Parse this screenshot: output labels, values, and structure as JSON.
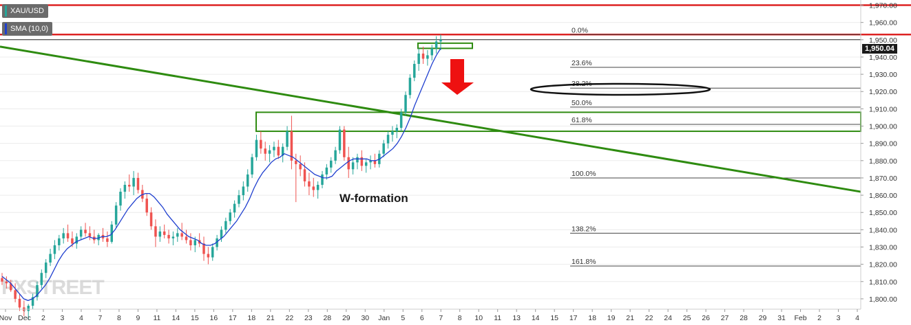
{
  "legend": {
    "symbol": "XAU/USD",
    "indicator": "SMA (10,0)",
    "symbol_color": "#26a69a",
    "indicator_color": "#1f3fcf"
  },
  "last_price_label": "1,950.04",
  "chart_data": {
    "type": "candlestick",
    "title": "",
    "xlabel": "",
    "ylabel": "",
    "ylim": [
      1794,
      1973
    ],
    "y_ticks": [
      "1,970.00",
      "1,960.00",
      "1,950.00",
      "1,940.00",
      "1,930.00",
      "1,920.00",
      "1,910.00",
      "1,900.00",
      "1,890.00",
      "1,880.00",
      "1,870.00",
      "1,860.00",
      "1,850.00",
      "1,840.00",
      "1,830.00",
      "1,820.00",
      "1,810.00",
      "1,800.00"
    ],
    "x_ticks": [
      "Nov",
      "Dec",
      "2",
      "3",
      "4",
      "7",
      "8",
      "9",
      "11",
      "14",
      "15",
      "16",
      "17",
      "18",
      "21",
      "22",
      "23",
      "28",
      "29",
      "30",
      "Jan",
      "5",
      "6",
      "7",
      "8",
      "10",
      "11",
      "13",
      "14",
      "15",
      "17",
      "18",
      "19",
      "21",
      "22",
      "24",
      "25",
      "26",
      "27",
      "28",
      "29",
      "31",
      "Feb",
      "2",
      "3",
      "4"
    ],
    "bullish_color": "#26a69a",
    "bearish_color": "#ef5350",
    "sma_color": "#1f3fcf",
    "candles_ohlc": [
      [
        1812,
        1815,
        1808,
        1810
      ],
      [
        1810,
        1813,
        1806,
        1809
      ],
      [
        1809,
        1811,
        1804,
        1805
      ],
      [
        1805,
        1809,
        1798,
        1800
      ],
      [
        1800,
        1803,
        1793,
        1795
      ],
      [
        1795,
        1799,
        1790,
        1793
      ],
      [
        1793,
        1797,
        1788,
        1796
      ],
      [
        1796,
        1803,
        1794,
        1801
      ],
      [
        1801,
        1810,
        1799,
        1808
      ],
      [
        1808,
        1817,
        1806,
        1815
      ],
      [
        1815,
        1823,
        1812,
        1821
      ],
      [
        1821,
        1829,
        1819,
        1826
      ],
      [
        1826,
        1834,
        1823,
        1831
      ],
      [
        1831,
        1837,
        1828,
        1835
      ],
      [
        1835,
        1841,
        1832,
        1838
      ],
      [
        1838,
        1843,
        1833,
        1835
      ],
      [
        1835,
        1839,
        1830,
        1832
      ],
      [
        1832,
        1838,
        1829,
        1836
      ],
      [
        1836,
        1842,
        1834,
        1840
      ],
      [
        1840,
        1844,
        1836,
        1838
      ],
      [
        1838,
        1842,
        1834,
        1836
      ],
      [
        1836,
        1840,
        1832,
        1834
      ],
      [
        1834,
        1838,
        1831,
        1837
      ],
      [
        1837,
        1841,
        1833,
        1835
      ],
      [
        1835,
        1839,
        1830,
        1833
      ],
      [
        1833,
        1845,
        1832,
        1843
      ],
      [
        1843,
        1856,
        1841,
        1854
      ],
      [
        1854,
        1864,
        1851,
        1862
      ],
      [
        1862,
        1868,
        1858,
        1866
      ],
      [
        1866,
        1872,
        1862,
        1865
      ],
      [
        1865,
        1874,
        1860,
        1870
      ],
      [
        1870,
        1873,
        1861,
        1863
      ],
      [
        1863,
        1866,
        1856,
        1858
      ],
      [
        1858,
        1861,
        1848,
        1850
      ],
      [
        1850,
        1853,
        1840,
        1842
      ],
      [
        1842,
        1846,
        1830,
        1836
      ],
      [
        1836,
        1842,
        1833,
        1839
      ],
      [
        1839,
        1843,
        1835,
        1837
      ],
      [
        1837,
        1840,
        1832,
        1835
      ],
      [
        1835,
        1839,
        1831,
        1836
      ],
      [
        1836,
        1841,
        1833,
        1838
      ],
      [
        1838,
        1844,
        1834,
        1836
      ],
      [
        1836,
        1840,
        1832,
        1834
      ],
      [
        1834,
        1838,
        1828,
        1831
      ],
      [
        1831,
        1836,
        1827,
        1834
      ],
      [
        1834,
        1838,
        1830,
        1832
      ],
      [
        1832,
        1836,
        1822,
        1826
      ],
      [
        1826,
        1830,
        1820,
        1824
      ],
      [
        1824,
        1832,
        1822,
        1830
      ],
      [
        1830,
        1837,
        1828,
        1835
      ],
      [
        1835,
        1842,
        1833,
        1840
      ],
      [
        1840,
        1847,
        1838,
        1845
      ],
      [
        1845,
        1852,
        1843,
        1850
      ],
      [
        1850,
        1857,
        1847,
        1855
      ],
      [
        1855,
        1863,
        1853,
        1860
      ],
      [
        1860,
        1868,
        1857,
        1865
      ],
      [
        1865,
        1875,
        1862,
        1872
      ],
      [
        1872,
        1884,
        1870,
        1882
      ],
      [
        1882,
        1895,
        1880,
        1892
      ],
      [
        1892,
        1897,
        1884,
        1887
      ],
      [
        1887,
        1891,
        1880,
        1884
      ],
      [
        1884,
        1889,
        1879,
        1886
      ],
      [
        1886,
        1891,
        1882,
        1888
      ],
      [
        1888,
        1892,
        1881,
        1883
      ],
      [
        1883,
        1890,
        1879,
        1888
      ],
      [
        1888,
        1900,
        1886,
        1897
      ],
      [
        1897,
        1906,
        1875,
        1880
      ],
      [
        1880,
        1884,
        1856,
        1878
      ],
      [
        1878,
        1883,
        1871,
        1875
      ],
      [
        1875,
        1879,
        1865,
        1868
      ],
      [
        1868,
        1873,
        1860,
        1865
      ],
      [
        1865,
        1870,
        1859,
        1863
      ],
      [
        1863,
        1868,
        1858,
        1866
      ],
      [
        1866,
        1874,
        1864,
        1872
      ],
      [
        1872,
        1878,
        1869,
        1876
      ],
      [
        1876,
        1882,
        1873,
        1880
      ],
      [
        1880,
        1888,
        1878,
        1886
      ],
      [
        1886,
        1900,
        1884,
        1898
      ],
      [
        1898,
        1900,
        1880,
        1882
      ],
      [
        1882,
        1888,
        1870,
        1875
      ],
      [
        1875,
        1882,
        1872,
        1879
      ],
      [
        1879,
        1884,
        1875,
        1882
      ],
      [
        1882,
        1886,
        1874,
        1877
      ],
      [
        1877,
        1881,
        1873,
        1879
      ],
      [
        1879,
        1883,
        1875,
        1880
      ],
      [
        1880,
        1884,
        1876,
        1878
      ],
      [
        1878,
        1886,
        1876,
        1884
      ],
      [
        1884,
        1892,
        1882,
        1890
      ],
      [
        1890,
        1897,
        1887,
        1895
      ],
      [
        1895,
        1900,
        1891,
        1897
      ],
      [
        1897,
        1901,
        1893,
        1899
      ],
      [
        1899,
        1910,
        1897,
        1908
      ],
      [
        1908,
        1920,
        1906,
        1918
      ],
      [
        1918,
        1930,
        1916,
        1928
      ],
      [
        1928,
        1938,
        1926,
        1936
      ],
      [
        1936,
        1945,
        1932,
        1942
      ],
      [
        1942,
        1946,
        1936,
        1939
      ],
      [
        1939,
        1944,
        1935,
        1941
      ],
      [
        1941,
        1947,
        1938,
        1945
      ],
      [
        1945,
        1952,
        1942,
        1949
      ],
      [
        1949,
        1953,
        1944,
        1950
      ]
    ],
    "sma_values": [
      1813,
      1811,
      1809,
      1806,
      1803,
      1800,
      1799,
      1800,
      1802,
      1805,
      1808,
      1812,
      1817,
      1822,
      1826,
      1829,
      1831,
      1833,
      1834,
      1835,
      1836,
      1835,
      1835,
      1836,
      1836,
      1837,
      1840,
      1844,
      1848,
      1852,
      1855,
      1858,
      1860,
      1861,
      1861,
      1859,
      1856,
      1853,
      1849,
      1846,
      1843,
      1840,
      1838,
      1836,
      1835,
      1834,
      1832,
      1831,
      1831,
      1832,
      1834,
      1836,
      1839,
      1842,
      1845,
      1849,
      1853,
      1858,
      1864,
      1869,
      1873,
      1876,
      1879,
      1881,
      1882,
      1884,
      1883,
      1882,
      1880,
      1878,
      1876,
      1874,
      1872,
      1871,
      1870,
      1870,
      1871,
      1874,
      1876,
      1878,
      1880,
      1881,
      1881,
      1881,
      1881,
      1880,
      1880,
      1881,
      1883,
      1885,
      1887,
      1890,
      1894,
      1899,
      1905,
      1912,
      1918,
      1924,
      1930,
      1936,
      1941,
      1945
    ],
    "trendline": {
      "from": [
        0,
        1946
      ],
      "to": [
        1323,
        1862
      ],
      "x_unit": "px_chart_span_fraction_not_used"
    },
    "horizontal_levels": [
      {
        "label": "resistance-upper",
        "value": 1970,
        "color": "#dd2222"
      },
      {
        "label": "resistance-lower",
        "value": 1953,
        "color": "#dd2222"
      }
    ],
    "fibonacci": [
      {
        "label": "0.0%",
        "value": 1953
      },
      {
        "label": "23.6%",
        "value": 1934
      },
      {
        "label": "38.2%",
        "value": 1922
      },
      {
        "label": "50.0%",
        "value": 1911
      },
      {
        "label": "61.8%",
        "value": 1901
      },
      {
        "label": "100.0%",
        "value": 1870
      },
      {
        "label": "138.2%",
        "value": 1838
      },
      {
        "label": "161.8%",
        "value": 1819
      }
    ],
    "annotations": {
      "w_formation": "W-formation"
    },
    "zones": [
      {
        "name": "breakout-zone",
        "y_low": 1897,
        "y_high": 1908
      },
      {
        "name": "top-zone",
        "y_low": 1945,
        "y_high": 1948
      }
    ]
  },
  "watermark": "FXSTREET"
}
